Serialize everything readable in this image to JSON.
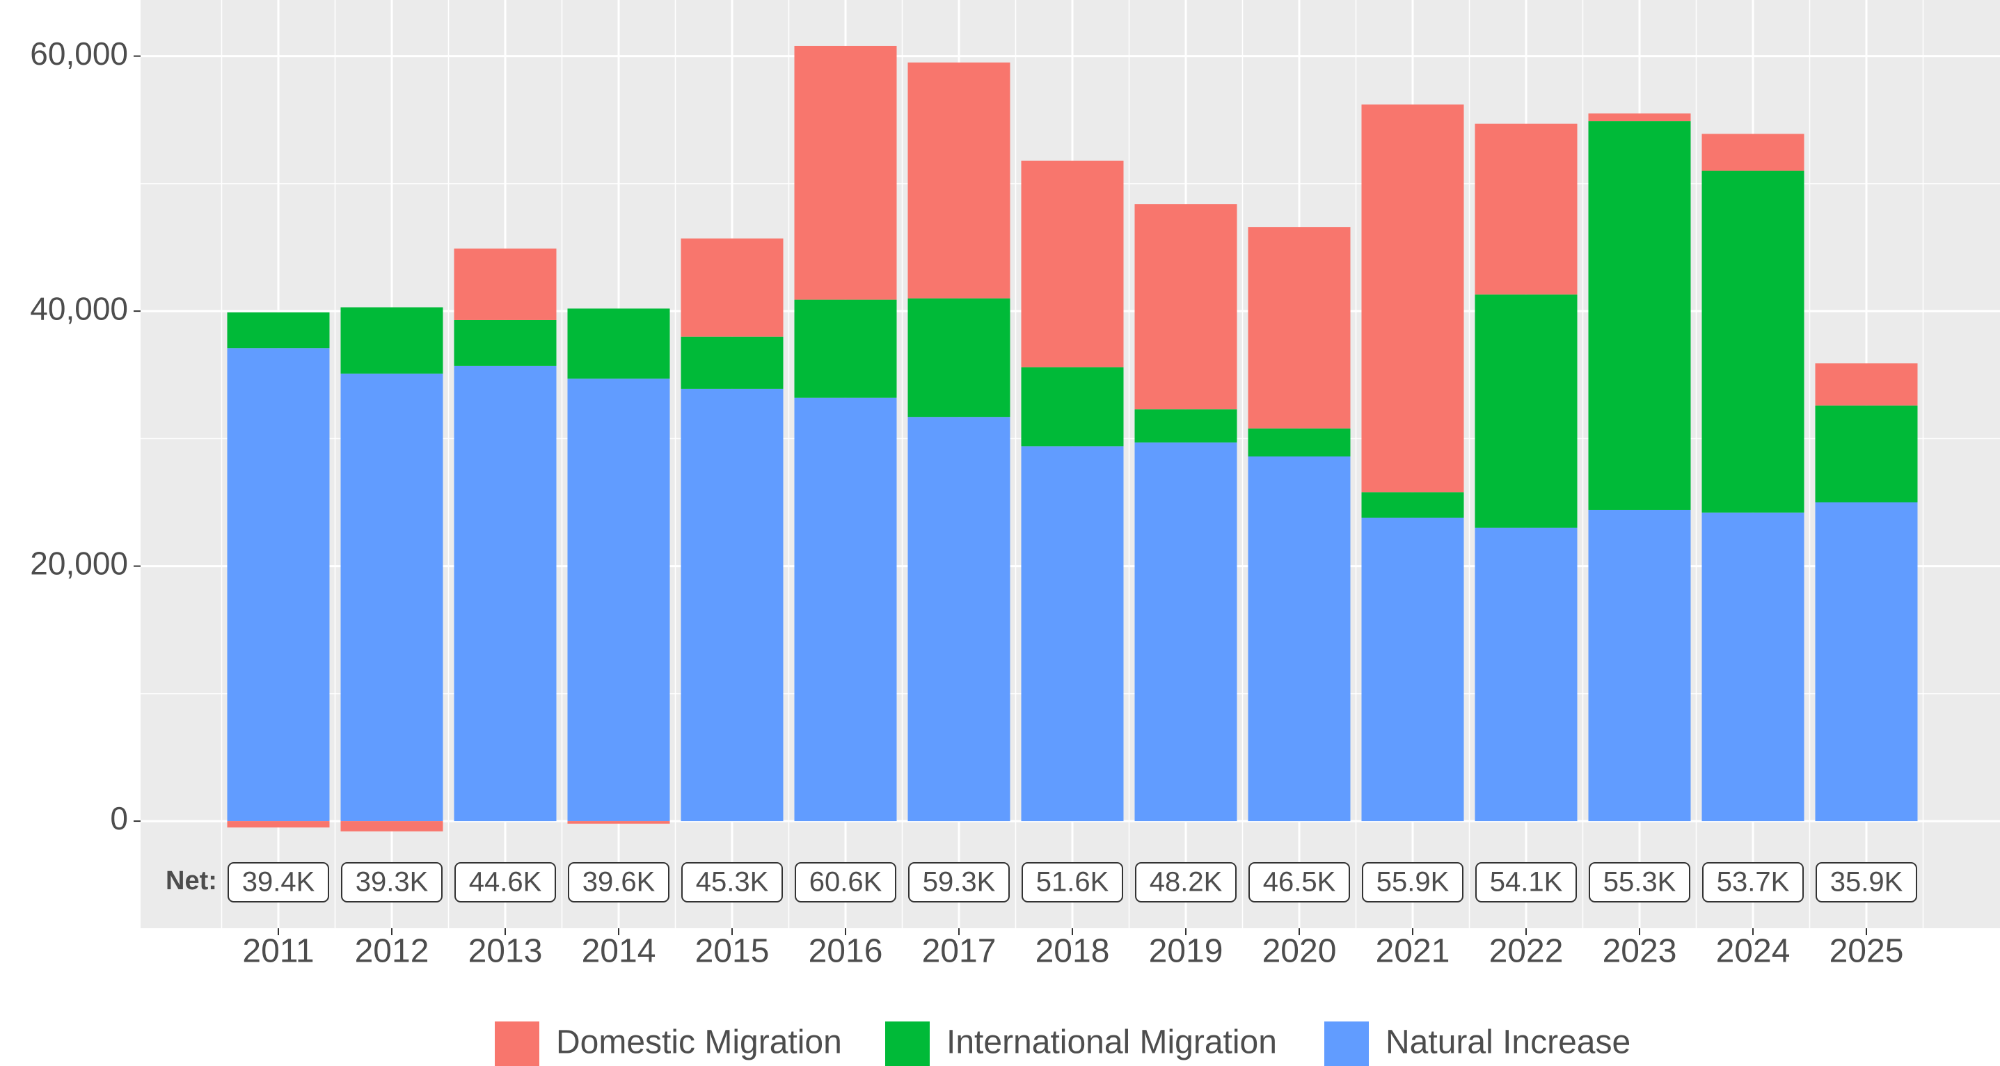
{
  "chart_data": {
    "type": "stacked_bar",
    "categories": [
      "2011",
      "2012",
      "2013",
      "2014",
      "2015",
      "2016",
      "2017",
      "2018",
      "2019",
      "2020",
      "2021",
      "2022",
      "2023",
      "2024",
      "2025"
    ],
    "series": [
      {
        "name": "Natural Increase",
        "color": "#619CFF",
        "values": [
          37100,
          35100,
          35700,
          34700,
          33900,
          33200,
          31700,
          29400,
          29700,
          28600,
          23800,
          23000,
          24400,
          24200,
          25000
        ]
      },
      {
        "name": "International Migration",
        "color": "#00BA38",
        "values": [
          2800,
          5200,
          3600,
          5500,
          4100,
          7700,
          9300,
          6200,
          2600,
          2200,
          2000,
          18300,
          30500,
          26800,
          7600
        ]
      },
      {
        "name": "Domestic Migration",
        "color": "#F8766D",
        "values": [
          -500,
          -800,
          5600,
          -200,
          7700,
          19900,
          18500,
          16200,
          16100,
          15800,
          30400,
          13400,
          600,
          2900,
          3300
        ]
      }
    ],
    "legend_order": [
      "Domestic Migration",
      "International Migration",
      "Natural Increase"
    ],
    "net": {
      "label": "Net:",
      "values": [
        39400,
        39300,
        44600,
        39600,
        45300,
        60600,
        59300,
        51600,
        48200,
        46500,
        55900,
        54100,
        55300,
        53700,
        35900
      ],
      "value_labels": [
        "39.4K",
        "39.3K",
        "44.6K",
        "39.6K",
        "45.3K",
        "60.6K",
        "59.3K",
        "51.6K",
        "48.2K",
        "46.5K",
        "55.9K",
        "54.1K",
        "55.3K",
        "53.7K",
        "35.9K"
      ]
    },
    "ylim": [
      -8400,
      64400
    ],
    "yticks": [
      0,
      {
        "value": 20000,
        "label": "20,000"
      },
      {
        "value": 40000,
        "label": "40,000"
      },
      {
        "value": 60000,
        "label": "60,000"
      }
    ],
    "minor_yticks": [
      10000,
      30000,
      50000
    ],
    "grid": true,
    "legend": "bottom"
  }
}
